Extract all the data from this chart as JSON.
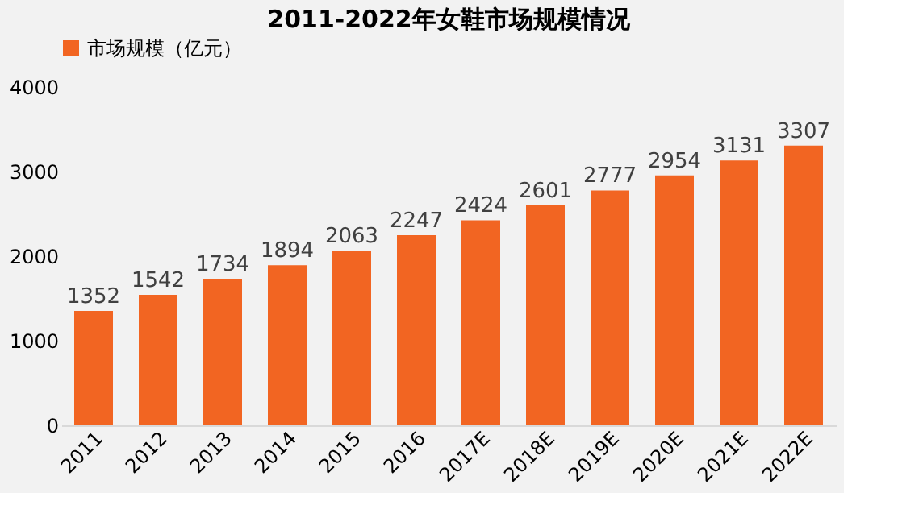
{
  "chart_data": {
    "type": "bar",
    "title": "2011-2022年女鞋市场规模情况",
    "categories": [
      "2011",
      "2012",
      "2013",
      "2014",
      "2015",
      "2016",
      "2017E",
      "2018E",
      "2019E",
      "2020E",
      "2021E",
      "2022E"
    ],
    "series": [
      {
        "name": "市场规模（亿元）",
        "color": "#f26522",
        "values": [
          1352,
          1542,
          1734,
          1894,
          2063,
          2247,
          2424,
          2601,
          2777,
          2954,
          3131,
          3307
        ]
      }
    ],
    "ylim": [
      0,
      4000
    ],
    "yticks": [
      0,
      1000,
      2000,
      3000,
      4000
    ],
    "grid": false,
    "legend": "top",
    "data_labels": true
  }
}
